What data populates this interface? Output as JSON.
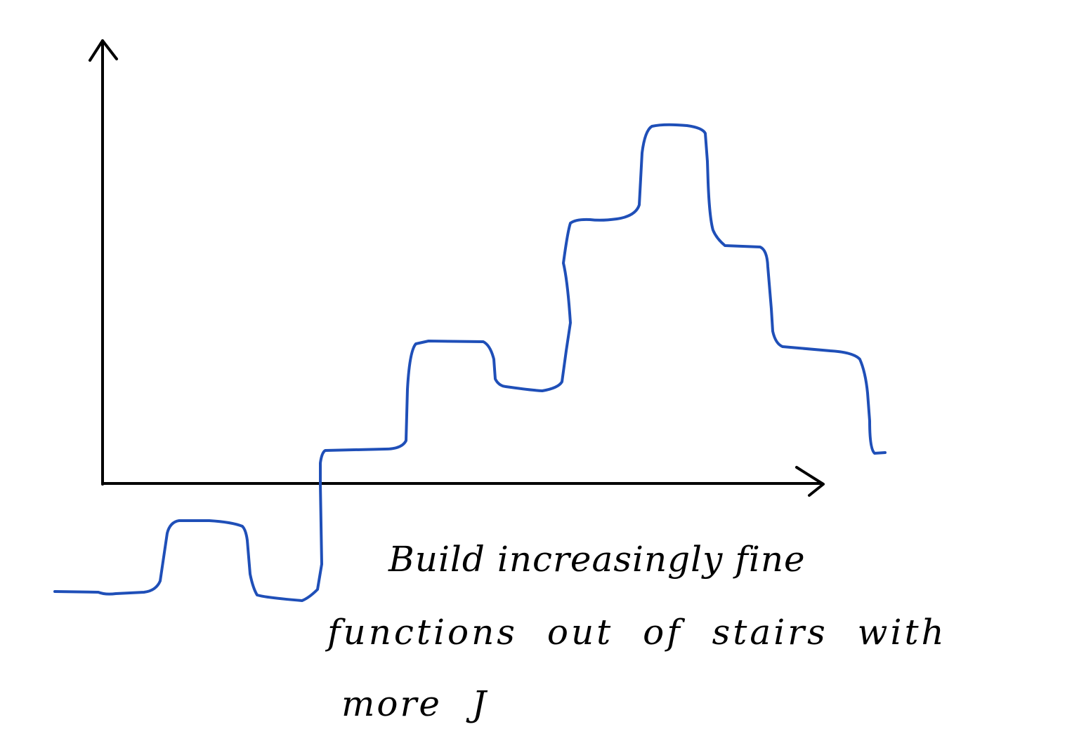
{
  "caption": {
    "line1": "Build increasingly fine",
    "line2": "functions out of stairs with",
    "line3": "more J"
  },
  "colors": {
    "axes": "#000000",
    "curve": "#1f4fb8",
    "background": "#ffffff"
  }
}
